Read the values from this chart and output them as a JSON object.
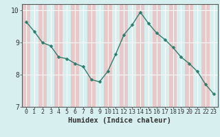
{
  "x": [
    0,
    1,
    2,
    3,
    4,
    5,
    6,
    7,
    8,
    9,
    10,
    11,
    12,
    13,
    14,
    15,
    16,
    17,
    18,
    19,
    20,
    21,
    22,
    23
  ],
  "y": [
    9.65,
    9.35,
    9.0,
    8.9,
    8.55,
    8.5,
    8.35,
    8.25,
    7.85,
    7.78,
    8.1,
    8.65,
    9.25,
    9.55,
    9.95,
    9.6,
    9.3,
    9.1,
    8.85,
    8.55,
    8.35,
    8.1,
    7.7,
    7.4
  ],
  "xlabel": "Humidex (Indice chaleur)",
  "ylim": [
    7.0,
    10.2
  ],
  "xlim": [
    -0.5,
    23.5
  ],
  "yticks": [
    7,
    8,
    9,
    10
  ],
  "xticks": [
    0,
    1,
    2,
    3,
    4,
    5,
    6,
    7,
    8,
    9,
    10,
    11,
    12,
    13,
    14,
    15,
    16,
    17,
    18,
    19,
    20,
    21,
    22,
    23
  ],
  "line_color": "#2d7d6e",
  "marker_color": "#2d7d6e",
  "bg_color": "#d8eff0",
  "stripe_color": "#e8c8c8",
  "grid_color": "#ffffff",
  "axis_color": "#555555",
  "tick_color": "#333333",
  "xlabel_fontsize": 7.5,
  "tick_fontsize": 6,
  "ytick_fontsize": 7,
  "line_width": 1.0,
  "marker_size": 2.5
}
